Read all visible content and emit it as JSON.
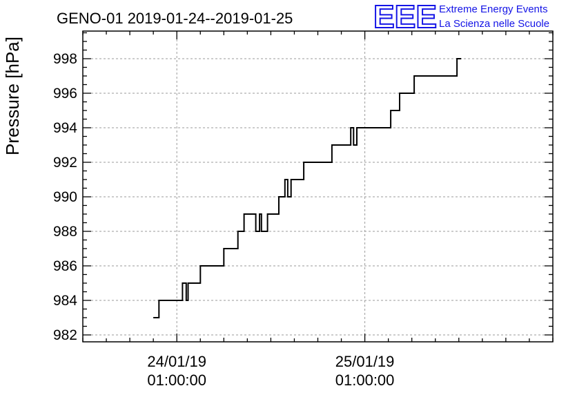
{
  "logo": {
    "mark": "EEE",
    "line1": "Extreme Energy Events",
    "line2": "La Scienza nelle Scuole",
    "color": "#1414e6"
  },
  "chart_data": {
    "type": "line",
    "title": "GENO-01 2019-01-24--2019-01-25",
    "xlabel": "",
    "ylabel": "Pressure [hPa]",
    "ylim": [
      981.6,
      999.6
    ],
    "xlim": [
      -2.0,
      8.0
    ],
    "grid": true,
    "y_ticks": [
      982,
      984,
      986,
      988,
      990,
      992,
      994,
      996,
      998
    ],
    "x_ticks": [
      {
        "x": 0,
        "date": "24/01/19",
        "time": "01:00:00"
      },
      {
        "x": 4,
        "date": "25/01/19",
        "time": "01:00:00"
      }
    ],
    "series": [
      {
        "step": true,
        "points": [
          [
            -0.5,
            983
          ],
          [
            -0.38,
            983
          ],
          [
            -0.38,
            984
          ],
          [
            0.12,
            984
          ],
          [
            0.12,
            985
          ],
          [
            0.2,
            985
          ],
          [
            0.2,
            984
          ],
          [
            0.24,
            984
          ],
          [
            0.24,
            985
          ],
          [
            0.5,
            985
          ],
          [
            0.5,
            986
          ],
          [
            1.0,
            986
          ],
          [
            1.0,
            987
          ],
          [
            1.3,
            987
          ],
          [
            1.3,
            988
          ],
          [
            1.43,
            988
          ],
          [
            1.43,
            989
          ],
          [
            1.68,
            989
          ],
          [
            1.68,
            988
          ],
          [
            1.76,
            988
          ],
          [
            1.76,
            989
          ],
          [
            1.8,
            989
          ],
          [
            1.8,
            988
          ],
          [
            1.93,
            988
          ],
          [
            1.93,
            989
          ],
          [
            2.17,
            989
          ],
          [
            2.17,
            990
          ],
          [
            2.3,
            990
          ],
          [
            2.3,
            991
          ],
          [
            2.36,
            991
          ],
          [
            2.36,
            990
          ],
          [
            2.43,
            990
          ],
          [
            2.43,
            991
          ],
          [
            2.7,
            991
          ],
          [
            2.7,
            992
          ],
          [
            3.3,
            992
          ],
          [
            3.3,
            993
          ],
          [
            3.7,
            993
          ],
          [
            3.7,
            994
          ],
          [
            3.76,
            994
          ],
          [
            3.76,
            993
          ],
          [
            3.83,
            993
          ],
          [
            3.83,
            994
          ],
          [
            4.55,
            994
          ],
          [
            4.55,
            995
          ],
          [
            4.74,
            995
          ],
          [
            4.74,
            996
          ],
          [
            5.05,
            996
          ],
          [
            5.05,
            997
          ],
          [
            5.96,
            997
          ],
          [
            5.96,
            998
          ],
          [
            6.05,
            998
          ]
        ]
      }
    ]
  }
}
